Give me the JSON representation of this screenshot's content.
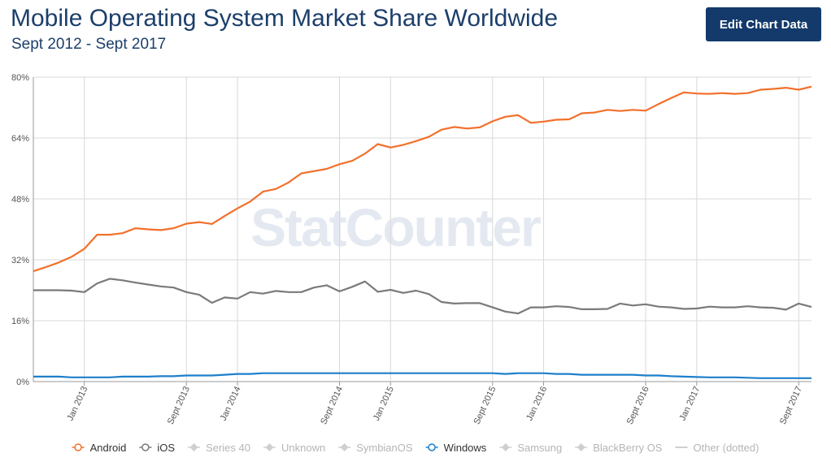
{
  "header": {
    "title": "Mobile Operating System Market Share Worldwide",
    "subtitle": "Sept 2012 - Sept 2017",
    "edit_button_label": "Edit Chart Data"
  },
  "watermark": "StatCounter",
  "chart_data": {
    "type": "line",
    "title": "Mobile Operating System Market Share Worldwide",
    "subtitle": "Sept 2012 - Sept 2017",
    "ylim": [
      0,
      80
    ],
    "y_ticks": [
      "0%",
      "16%",
      "32%",
      "48%",
      "64%",
      "80%"
    ],
    "x_tick_labels": [
      {
        "label": "Jan 2013",
        "index": 4
      },
      {
        "label": "Sept 2013",
        "index": 12
      },
      {
        "label": "Jan 2014",
        "index": 16
      },
      {
        "label": "Sept 2014",
        "index": 24
      },
      {
        "label": "Jan 2015",
        "index": 28
      },
      {
        "label": "Sept 2015",
        "index": 36
      },
      {
        "label": "Jan 2016",
        "index": 40
      },
      {
        "label": "Sept 2016",
        "index": 48
      },
      {
        "label": "Jan 2017",
        "index": 52
      },
      {
        "label": "Sept 2017",
        "index": 60
      }
    ],
    "grid": true,
    "legend_position": "bottom",
    "series": [
      {
        "name": "Android",
        "color": "#f2702b",
        "dotted": false,
        "values": [
          29.0,
          30.1,
          31.3,
          32.8,
          34.9,
          38.6,
          38.6,
          39.0,
          40.3,
          40.0,
          39.8,
          40.3,
          41.5,
          41.9,
          41.4,
          43.5,
          45.5,
          47.3,
          49.9,
          50.6,
          52.3,
          54.7,
          55.3,
          55.9,
          57.1,
          58.0,
          59.9,
          62.4,
          61.5,
          62.2,
          63.2,
          64.3,
          66.2,
          66.9,
          66.5,
          66.8,
          68.4,
          69.6,
          70.0,
          68.0,
          68.3,
          68.8,
          68.9,
          70.5,
          70.7,
          71.4,
          71.1,
          71.4,
          71.2,
          72.9,
          74.5,
          76.0,
          75.7,
          75.6,
          75.8,
          75.6,
          75.8,
          76.7,
          76.9,
          77.2,
          76.7,
          77.5
        ]
      },
      {
        "name": "iOS",
        "color": "#7a7a7a",
        "dotted": false,
        "values": [
          24.0,
          24.0,
          24.0,
          23.9,
          23.5,
          25.8,
          27.0,
          26.6,
          26.0,
          25.5,
          25.0,
          24.7,
          23.5,
          22.8,
          20.7,
          22.1,
          21.8,
          23.5,
          23.1,
          23.8,
          23.5,
          23.5,
          24.7,
          25.3,
          23.7,
          24.9,
          26.3,
          23.6,
          24.1,
          23.3,
          23.9,
          23.0,
          20.9,
          20.5,
          20.6,
          20.6,
          19.5,
          18.4,
          17.9,
          19.5,
          19.5,
          19.8,
          19.6,
          19.0,
          19.0,
          19.1,
          20.5,
          20.0,
          20.3,
          19.7,
          19.5,
          19.1,
          19.2,
          19.7,
          19.5,
          19.5,
          19.8,
          19.5,
          19.4,
          18.9,
          20.5,
          19.6
        ]
      },
      {
        "name": "Series 40",
        "color": "#cfcfcf",
        "dotted": false,
        "values": []
      },
      {
        "name": "Unknown",
        "color": "#cfcfcf",
        "dotted": false,
        "values": []
      },
      {
        "name": "SymbianOS",
        "color": "#cfcfcf",
        "dotted": false,
        "values": []
      },
      {
        "name": "Windows",
        "color": "#1e7fcb",
        "dotted": false,
        "values": [
          1.3,
          1.3,
          1.3,
          1.1,
          1.1,
          1.1,
          1.1,
          1.3,
          1.3,
          1.3,
          1.4,
          1.4,
          1.6,
          1.6,
          1.6,
          1.8,
          2.0,
          2.0,
          2.2,
          2.2,
          2.2,
          2.2,
          2.2,
          2.2,
          2.2,
          2.2,
          2.2,
          2.2,
          2.2,
          2.2,
          2.2,
          2.2,
          2.2,
          2.2,
          2.2,
          2.2,
          2.2,
          2.0,
          2.2,
          2.2,
          2.2,
          2.0,
          2.0,
          1.8,
          1.8,
          1.8,
          1.8,
          1.8,
          1.6,
          1.6,
          1.4,
          1.3,
          1.2,
          1.1,
          1.1,
          1.1,
          1.0,
          0.9,
          0.9,
          0.9,
          0.9,
          0.9
        ]
      },
      {
        "name": "Samsung",
        "color": "#cfcfcf",
        "dotted": false,
        "values": []
      },
      {
        "name": "BlackBerry OS",
        "color": "#cfcfcf",
        "dotted": false,
        "values": []
      },
      {
        "name": "Other (dotted)",
        "color": "#cfcfcf",
        "dotted": true,
        "values": []
      }
    ]
  }
}
